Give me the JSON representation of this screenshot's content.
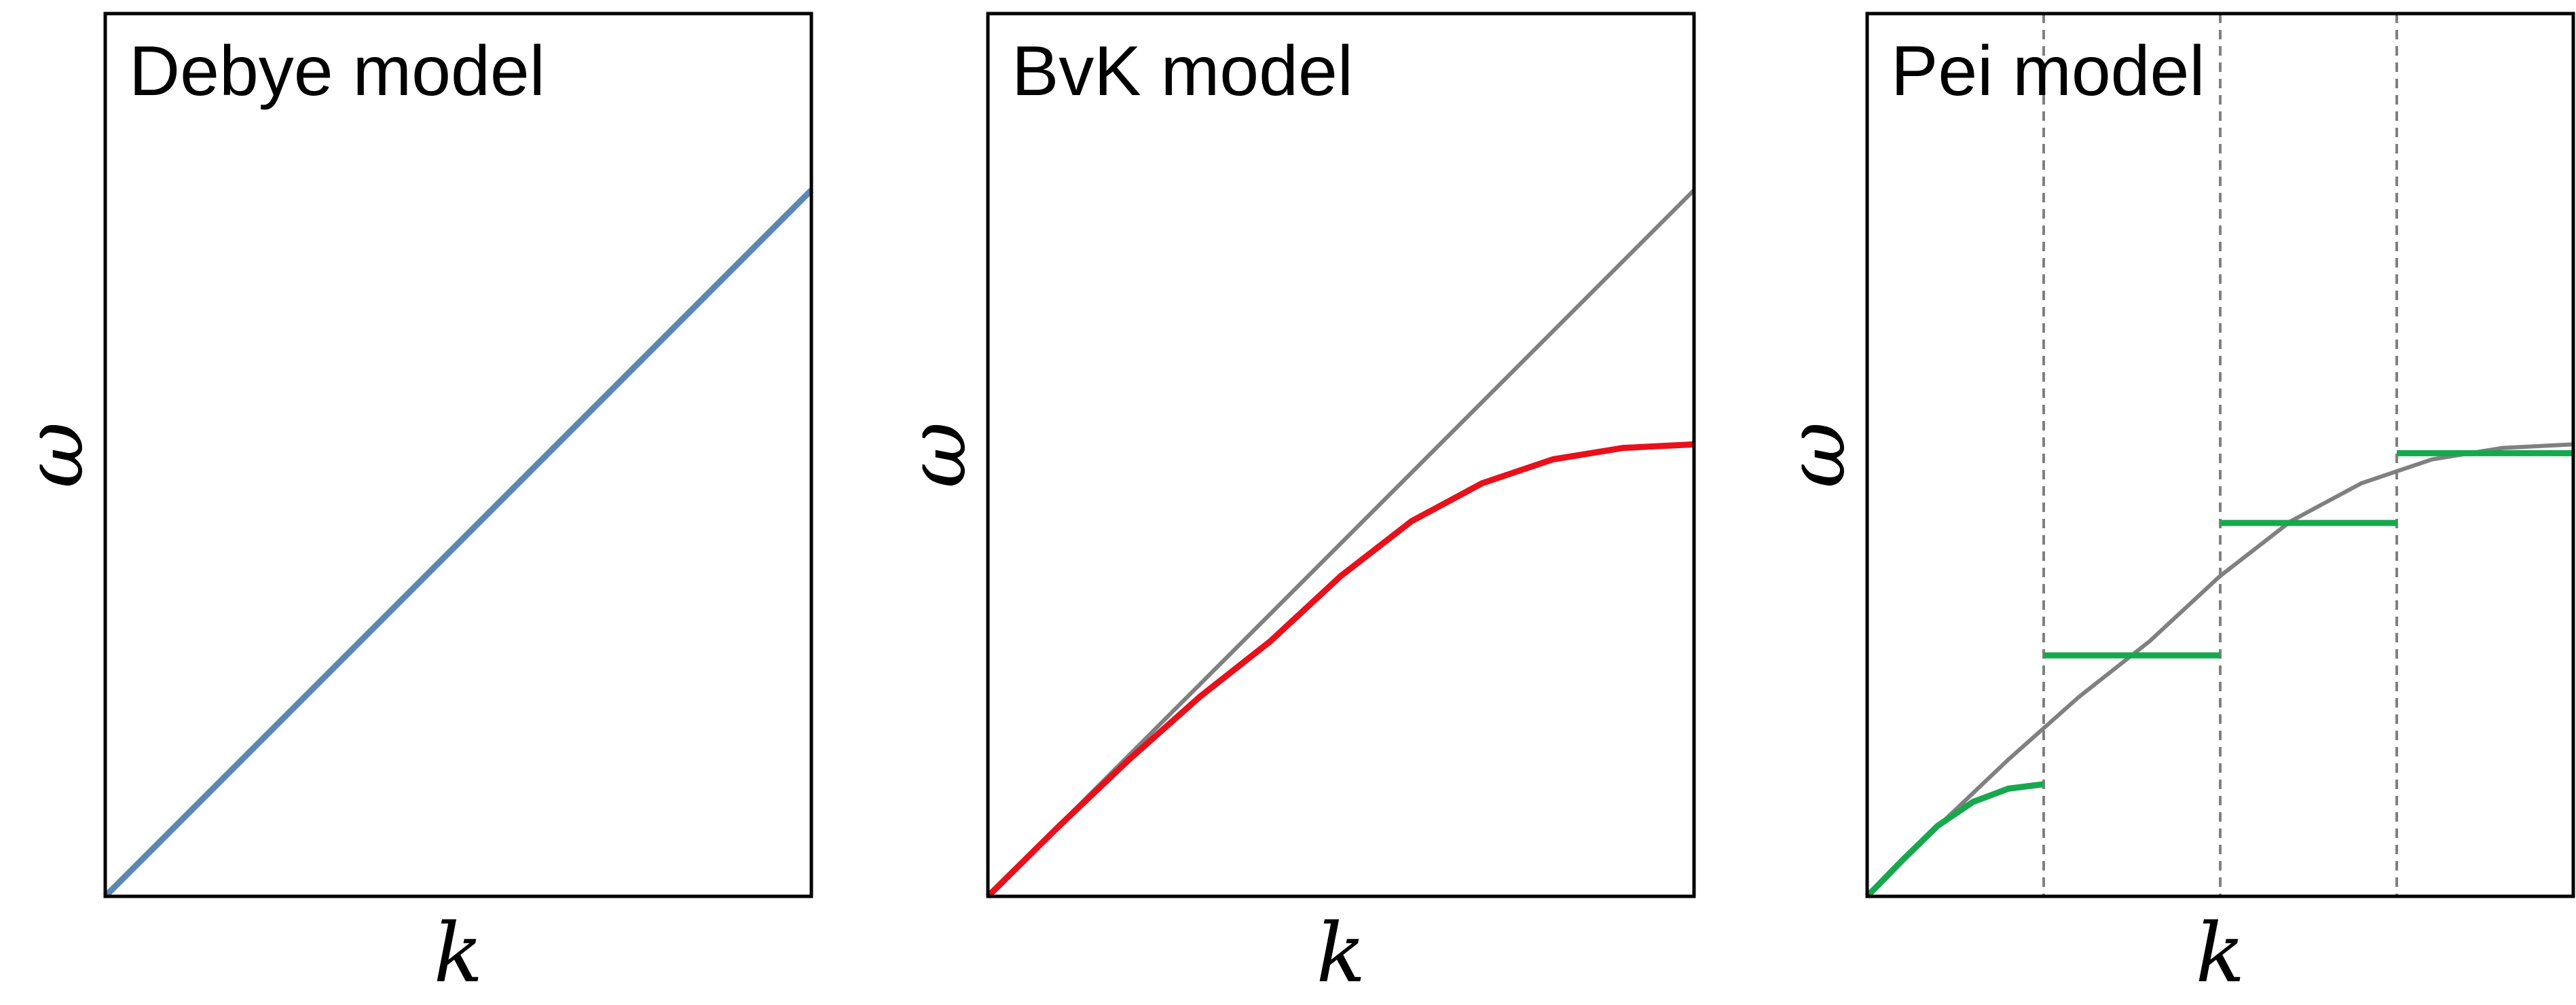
{
  "colors": {
    "debye": "#5b87b4",
    "bvk": "#e8101a",
    "pei": "#17a84e",
    "reference": "#808080",
    "frame": "#000000",
    "divider": "#808080"
  },
  "chart_data": [
    {
      "type": "line",
      "title": "Debye model",
      "xlabel": "k",
      "ylabel": "ω",
      "xlim": [
        0,
        1
      ],
      "ylim": [
        0,
        1
      ],
      "grid": false,
      "series": [
        {
          "role": "model",
          "color": "#5b87b4",
          "x": [
            0,
            1
          ],
          "y": [
            0,
            0.8
          ]
        }
      ]
    },
    {
      "type": "line",
      "title": "BvK model",
      "xlabel": "k",
      "ylabel": "ω",
      "xlim": [
        0,
        1
      ],
      "ylim": [
        0,
        1
      ],
      "grid": false,
      "series": [
        {
          "role": "reference",
          "color": "#808080",
          "x": [
            0,
            1
          ],
          "y": [
            0,
            0.8
          ]
        },
        {
          "role": "model",
          "color": "#e8101a",
          "x": [
            0,
            0.1,
            0.2,
            0.3,
            0.4,
            0.5,
            0.6,
            0.7,
            0.8,
            0.9,
            1.0
          ],
          "y": [
            0,
            0.079,
            0.155,
            0.226,
            0.289,
            0.363,
            0.425,
            0.468,
            0.495,
            0.508,
            0.512
          ]
        }
      ]
    },
    {
      "type": "line",
      "title": "Pei model",
      "xlabel": "k",
      "ylabel": "ω",
      "xlim": [
        0,
        1
      ],
      "ylim": [
        0,
        1
      ],
      "grid": false,
      "dividers_x": [
        0.25,
        0.5,
        0.75
      ],
      "series": [
        {
          "role": "reference",
          "color": "#808080",
          "x": [
            0,
            0.1,
            0.2,
            0.3,
            0.4,
            0.5,
            0.6,
            0.7,
            0.8,
            0.9,
            1.0
          ],
          "y": [
            0,
            0.079,
            0.155,
            0.226,
            0.289,
            0.363,
            0.425,
            0.468,
            0.495,
            0.508,
            0.512
          ]
        },
        {
          "role": "model-segment",
          "color": "#17a84e",
          "x": [
            0,
            0.05,
            0.1,
            0.15,
            0.2,
            0.25
          ],
          "y": [
            0,
            0.041,
            0.08,
            0.107,
            0.122,
            0.127
          ]
        },
        {
          "role": "model-segment",
          "color": "#17a84e",
          "x": [
            0.25,
            0.5
          ],
          "y": [
            0.273,
            0.273
          ]
        },
        {
          "role": "model-segment",
          "color": "#17a84e",
          "x": [
            0.5,
            0.75
          ],
          "y": [
            0.423,
            0.423
          ]
        },
        {
          "role": "model-segment",
          "color": "#17a84e",
          "x": [
            0.75,
            1.0
          ],
          "y": [
            0.502,
            0.502
          ]
        }
      ]
    }
  ]
}
